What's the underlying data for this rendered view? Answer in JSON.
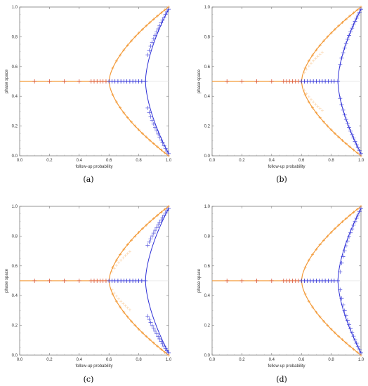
{
  "figure": {
    "panel_captions": [
      "(a)",
      "(b)",
      "(c)",
      "(d)"
    ]
  },
  "chart_data": [
    {
      "type": "scatter",
      "panel": "(a)",
      "xlabel": "follow-up probability",
      "ylabel": "phase space",
      "xlim": [
        0.0,
        1.0
      ],
      "ylim": [
        0.0,
        1.0
      ],
      "xticks": [
        "0.0",
        "0.2",
        "0.4",
        "0.6",
        "0.8",
        "1.0"
      ],
      "yticks": [
        "0.0",
        "0.2",
        "0.4",
        "0.6",
        "0.8",
        "1.0"
      ],
      "grid": false,
      "colors": {
        "orange": "#f39a38",
        "blue": "#2d2fd6",
        "red": "#d9553a",
        "fixed_line": "#e3e3e3"
      },
      "orange_bifurcation": 0.6,
      "blue_bifurcation": 0.845,
      "blue_marker_spread": 0.02,
      "red_markers_x": [
        0.1,
        0.2,
        0.3,
        0.4,
        0.48,
        0.5,
        0.52,
        0.54,
        0.56,
        0.58
      ],
      "blue_markers_x": [
        0.6,
        0.62,
        0.64,
        0.66,
        0.68,
        0.7,
        0.72,
        0.74,
        0.76,
        0.78,
        0.8,
        0.82,
        0.845,
        0.86,
        0.87,
        0.88,
        0.89,
        0.9,
        0.91,
        0.92,
        0.93,
        0.94,
        0.95,
        0.96,
        0.97,
        0.98,
        0.99,
        1.0
      ],
      "faint_orange_markers": false
    },
    {
      "type": "scatter",
      "panel": "(b)",
      "xlabel": "follow-up probability",
      "ylabel": "phase space",
      "xlim": [
        0.0,
        1.0
      ],
      "ylim": [
        0.0,
        1.0
      ],
      "xticks": [
        "0.0",
        "0.2",
        "0.4",
        "0.6",
        "0.8",
        "1.0"
      ],
      "yticks": [
        "0.0",
        "0.2",
        "0.4",
        "0.6",
        "0.8",
        "1.0"
      ],
      "grid": false,
      "colors": {
        "orange": "#f39a38",
        "blue": "#2d2fd6",
        "red": "#d9553a",
        "fixed_line": "#e3e3e3"
      },
      "orange_bifurcation": 0.6,
      "blue_bifurcation": 0.845,
      "blue_marker_spread": 0.0,
      "red_markers_x": [
        0.1,
        0.2,
        0.3,
        0.4,
        0.48,
        0.5,
        0.52,
        0.54,
        0.56,
        0.58
      ],
      "blue_markers_x": [
        0.6,
        0.62,
        0.64,
        0.66,
        0.68,
        0.7,
        0.72,
        0.74,
        0.76,
        0.78,
        0.8,
        0.82,
        0.845,
        0.86,
        0.87,
        0.88,
        0.89,
        0.9,
        0.91,
        0.92,
        0.93,
        0.94,
        0.95,
        0.96,
        0.97,
        0.98,
        0.99,
        1.0
      ],
      "faint_orange_markers": true
    },
    {
      "type": "scatter",
      "panel": "(c)",
      "xlabel": "follow-up probability",
      "ylabel": "phase space",
      "xlim": [
        0.0,
        1.0
      ],
      "ylim": [
        0.0,
        1.0
      ],
      "xticks": [
        "0.0",
        "0.2",
        "0.4",
        "0.6",
        "0.8",
        "1.0"
      ],
      "yticks": [
        "0.0",
        "0.2",
        "0.4",
        "0.6",
        "0.8",
        "1.0"
      ],
      "grid": false,
      "colors": {
        "orange": "#f39a38",
        "blue": "#2d2fd6",
        "red": "#d9553a",
        "fixed_line": "#e3e3e3"
      },
      "orange_bifurcation": 0.6,
      "blue_bifurcation": 0.845,
      "blue_marker_spread": 0.05,
      "red_markers_x": [
        0.1,
        0.2,
        0.3,
        0.4,
        0.48,
        0.5,
        0.52,
        0.54,
        0.56,
        0.58
      ],
      "blue_markers_x": [
        0.6,
        0.62,
        0.64,
        0.66,
        0.68,
        0.7,
        0.72,
        0.74,
        0.76,
        0.78,
        0.8,
        0.82,
        0.845,
        0.86,
        0.87,
        0.88,
        0.89,
        0.9,
        0.91,
        0.92,
        0.93,
        0.94,
        0.95,
        0.96,
        0.97,
        0.98,
        0.99,
        1.0
      ],
      "faint_orange_markers": true
    },
    {
      "type": "scatter",
      "panel": "(d)",
      "xlabel": "follow-up probability",
      "ylabel": "phase space",
      "xlim": [
        0.0,
        1.0
      ],
      "ylim": [
        0.0,
        1.0
      ],
      "xticks": [
        "0.0",
        "0.2",
        "0.4",
        "0.6",
        "0.8",
        "1.0"
      ],
      "yticks": [
        "0.0",
        "0.2",
        "0.4",
        "0.6",
        "0.8",
        "1.0"
      ],
      "grid": false,
      "colors": {
        "orange": "#f39a38",
        "blue": "#2d2fd6",
        "red": "#d9553a",
        "fixed_line": "#e3e3e3"
      },
      "orange_bifurcation": 0.6,
      "blue_bifurcation": 0.845,
      "blue_marker_spread": -0.01,
      "red_markers_x": [
        0.1,
        0.2,
        0.3,
        0.4,
        0.48,
        0.5,
        0.52,
        0.54,
        0.56,
        0.58
      ],
      "blue_markers_x": [
        0.6,
        0.62,
        0.64,
        0.66,
        0.68,
        0.7,
        0.72,
        0.74,
        0.76,
        0.78,
        0.8,
        0.82,
        0.845,
        0.86,
        0.87,
        0.88,
        0.89,
        0.9,
        0.91,
        0.92,
        0.93,
        0.94,
        0.95,
        0.96,
        0.97,
        0.98,
        0.99,
        1.0
      ],
      "faint_orange_markers": false
    }
  ]
}
